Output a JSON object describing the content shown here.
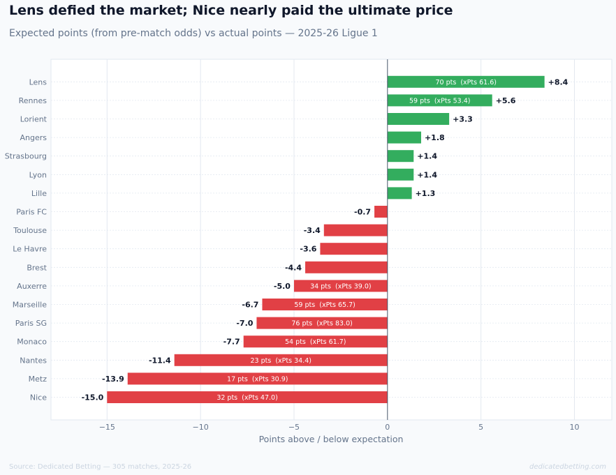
{
  "header": {
    "title": "Lens defied the market; Nice nearly paid the ultimate price",
    "subtitle": "Expected points (from pre-match odds) vs actual points — 2025-26 Ligue 1"
  },
  "footer": {
    "source": "Source: Dedicated Betting — 305 matches, 2025-26",
    "brand": "dedicatedbetting.com"
  },
  "colors": {
    "positive": "#33ad5e",
    "negative": "#e14045",
    "axis_text": "#64748b",
    "value_text": "#0f172a",
    "zero_line": "#475569",
    "grid": "#e2e8f0"
  },
  "chart_data": {
    "type": "bar",
    "orientation": "horizontal",
    "xlabel": "Points above / below expectation",
    "ylabel": "",
    "xlim": [
      -18,
      12
    ],
    "xticks": [
      -15,
      -10,
      -5,
      0,
      5,
      10
    ],
    "xtick_labels": [
      "−15",
      "−10",
      "−5",
      "0",
      "5",
      "10"
    ],
    "grid": true,
    "categories": [
      "Lens",
      "Rennes",
      "Lorient",
      "Angers",
      "Strasbourg",
      "Lyon",
      "Lille",
      "Paris FC",
      "Toulouse",
      "Le Havre",
      "Brest",
      "Auxerre",
      "Marseille",
      "Paris SG",
      "Monaco",
      "Nantes",
      "Metz",
      "Nice"
    ],
    "values": [
      8.4,
      5.6,
      3.3,
      1.8,
      1.4,
      1.4,
      1.3,
      -0.7,
      -3.4,
      -3.6,
      -4.4,
      -5.0,
      -6.7,
      -7.0,
      -7.7,
      -11.4,
      -13.9,
      -15.0
    ],
    "value_labels": [
      "+8.4",
      "+5.6",
      "+3.3",
      "+1.8",
      "+1.4",
      "+1.4",
      "+1.3",
      "-0.7",
      "-3.4",
      "-3.6",
      "-4.4",
      "-5.0",
      "-6.7",
      "-7.0",
      "-7.7",
      "-11.4",
      "-13.9",
      "-15.0"
    ],
    "annotations": [
      "70 pts  (xPts 61.6)",
      "59 pts  (xPts 53.4)",
      "",
      "",
      "",
      "",
      "",
      "",
      "",
      "",
      "",
      "34 pts  (xPts 39.0)",
      "59 pts  (xPts 65.7)",
      "76 pts  (xPts 83.0)",
      "54 pts  (xPts 61.7)",
      "23 pts  (xPts 34.4)",
      "17 pts  (xPts 30.9)",
      "32 pts  (xPts 47.0)"
    ]
  }
}
